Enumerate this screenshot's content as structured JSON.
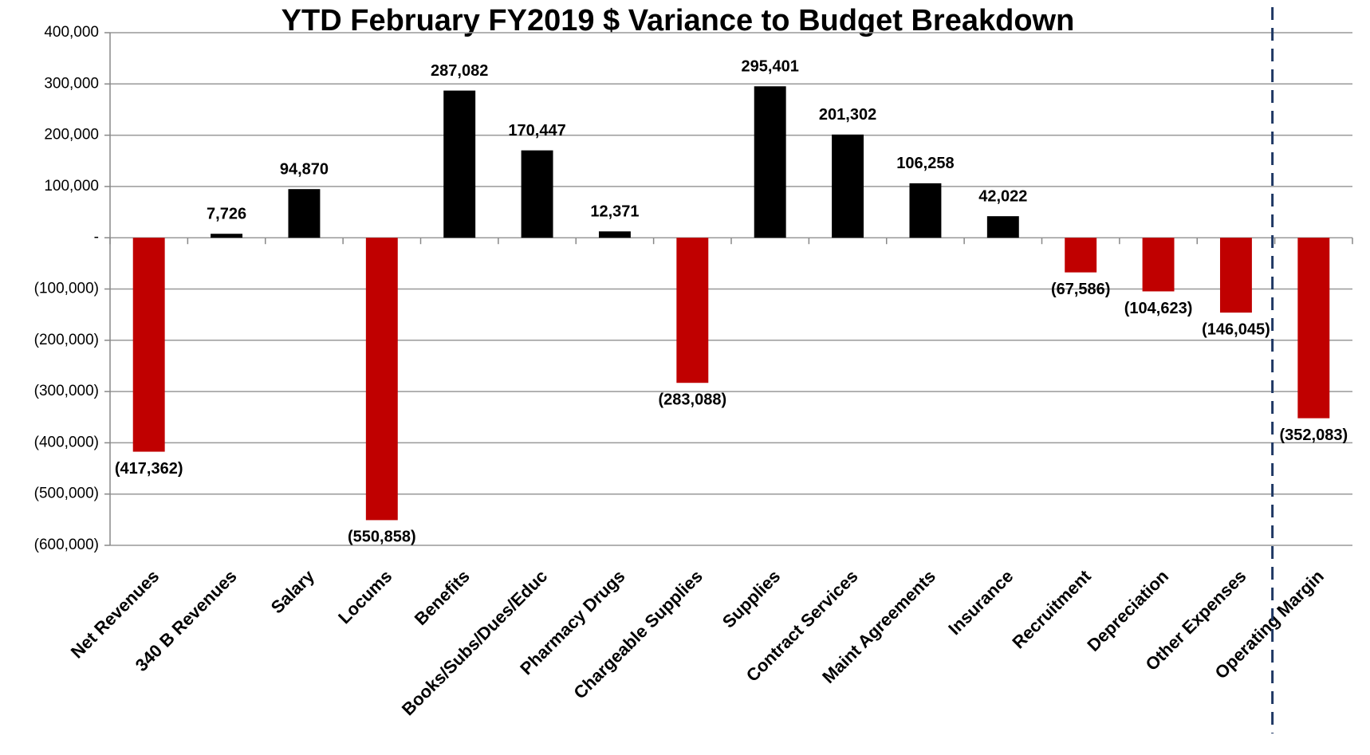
{
  "chart_data": {
    "type": "bar",
    "title": "YTD February FY2019 $ Variance to Budget Breakdown",
    "categories": [
      "Net Revenues",
      "340 B Revenues",
      "Salary",
      "Locums",
      "Benefits",
      "Books/Subs/Dues/Educ",
      "Pharmacy Drugs",
      "Chargeable Supplies",
      "Supplies",
      "Contract Services",
      "Maint Agreements",
      "Insurance",
      "Recruitment",
      "Depreciation",
      "Other Expenses",
      "Operating Margin"
    ],
    "values": [
      -417362,
      7726,
      94870,
      -550858,
      287082,
      170447,
      12371,
      -283088,
      295401,
      201302,
      106258,
      42022,
      -67586,
      -104623,
      -146045,
      -352083
    ],
    "value_labels": [
      "(417,362)",
      "7,726",
      "94,870",
      "(550,858)",
      "287,082",
      "170,447",
      "12,371",
      "(283,088)",
      "295,401",
      "201,302",
      "106,258",
      "42,022",
      "(67,586)",
      "(104,623)",
      "(146,045)",
      "(352,083)"
    ],
    "positive_color": "#000000",
    "negative_color": "#c00000",
    "ylim": [
      -600000,
      400000
    ],
    "yticks": [
      {
        "value": -600000,
        "label": "(600,000)"
      },
      {
        "value": -500000,
        "label": "(500,000)"
      },
      {
        "value": -400000,
        "label": "(400,000)"
      },
      {
        "value": -300000,
        "label": "(300,000)"
      },
      {
        "value": -200000,
        "label": "(200,000)"
      },
      {
        "value": -100000,
        "label": "(100,000)"
      },
      {
        "value": 0,
        "label": "-"
      },
      {
        "value": 100000,
        "label": "100,000"
      },
      {
        "value": 200000,
        "label": "200,000"
      },
      {
        "value": 300000,
        "label": "300,000"
      },
      {
        "value": 400000,
        "label": "400,000"
      }
    ],
    "grid": true
  }
}
